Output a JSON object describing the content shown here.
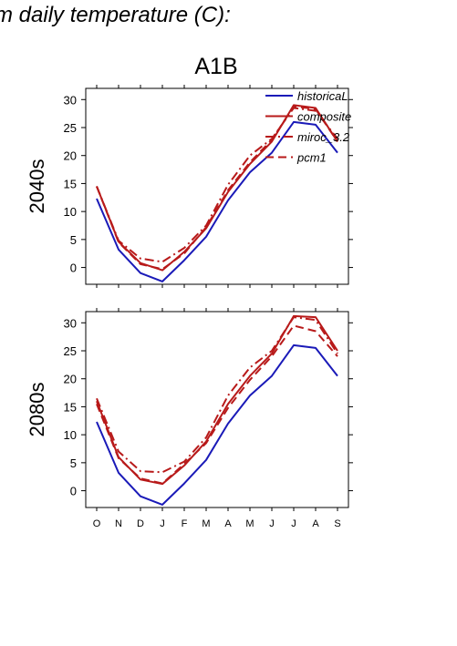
{
  "figure": {
    "title": "m daily temperature (C):",
    "scenario": "A1B",
    "colors": {
      "historical": "#1a1ab8",
      "projection": "#b81a1a"
    },
    "legend": [
      {
        "label": "historicaL",
        "color": "#1a1ab8",
        "dash": "solid"
      },
      {
        "label": "composite",
        "color": "#b81a1a",
        "dash": "solid"
      },
      {
        "label": "miroc_3.2",
        "color": "#b81a1a",
        "dash": "dashdot"
      },
      {
        "label": "pcm1",
        "color": "#b81a1a",
        "dash": "dashed"
      }
    ]
  },
  "chart_data": [
    {
      "type": "line",
      "title": "A1B",
      "ylabel": "2040s",
      "xlabel": "",
      "categories": [
        "O",
        "N",
        "D",
        "J",
        "F",
        "M",
        "A",
        "M",
        "J",
        "J",
        "A",
        "S"
      ],
      "ylim": [
        -3,
        32
      ],
      "yticks": [
        0,
        5,
        10,
        15,
        20,
        25,
        30
      ],
      "legend_position": "top-right",
      "series": [
        {
          "name": "historicaL",
          "color": "#1a1ab8",
          "dash": "solid",
          "values": [
            12.3,
            3.2,
            -1.0,
            -2.5,
            1.3,
            5.5,
            12.0,
            17.0,
            20.5,
            26.0,
            25.5,
            20.5
          ]
        },
        {
          "name": "composite",
          "color": "#b81a1a",
          "dash": "solid",
          "values": [
            14.5,
            4.6,
            0.8,
            -0.5,
            2.8,
            7.0,
            13.5,
            18.5,
            22.5,
            29.0,
            28.5,
            22.5
          ]
        },
        {
          "name": "miroc_3.2",
          "color": "#b81a1a",
          "dash": "dashdot",
          "values": [
            14.5,
            4.8,
            1.6,
            1.0,
            3.5,
            7.5,
            14.8,
            20.0,
            23.0,
            28.5,
            28.0,
            23.0
          ]
        },
        {
          "name": "pcm1",
          "color": "#b81a1a",
          "dash": "dashed",
          "values": [
            14.5,
            4.5,
            0.6,
            -0.3,
            2.5,
            7.2,
            13.8,
            18.8,
            22.8,
            28.8,
            28.3,
            22.5
          ]
        }
      ]
    },
    {
      "type": "line",
      "title": "",
      "ylabel": "2080s",
      "xlabel": "",
      "categories": [
        "O",
        "N",
        "D",
        "J",
        "F",
        "M",
        "A",
        "M",
        "J",
        "J",
        "A",
        "S"
      ],
      "ylim": [
        -3,
        32
      ],
      "yticks": [
        0,
        5,
        10,
        15,
        20,
        25,
        30
      ],
      "series": [
        {
          "name": "historicaL",
          "color": "#1a1ab8",
          "dash": "solid",
          "values": [
            12.3,
            3.2,
            -1.0,
            -2.5,
            1.3,
            5.5,
            12.0,
            17.0,
            20.5,
            26.0,
            25.5,
            20.5
          ]
        },
        {
          "name": "composite",
          "color": "#b81a1a",
          "dash": "solid",
          "values": [
            16.0,
            6.0,
            2.0,
            1.2,
            4.5,
            8.8,
            15.5,
            20.5,
            24.5,
            31.2,
            31.0,
            25.0
          ]
        },
        {
          "name": "miroc_3.2",
          "color": "#b81a1a",
          "dash": "dashdot",
          "values": [
            16.5,
            7.0,
            3.5,
            3.3,
            5.2,
            9.5,
            17.0,
            22.0,
            25.0,
            31.0,
            30.5,
            24.5
          ]
        },
        {
          "name": "pcm1",
          "color": "#b81a1a",
          "dash": "dashed",
          "values": [
            15.5,
            5.8,
            2.2,
            1.3,
            4.8,
            8.5,
            14.8,
            19.8,
            24.0,
            29.5,
            28.5,
            24.0
          ]
        }
      ]
    }
  ]
}
